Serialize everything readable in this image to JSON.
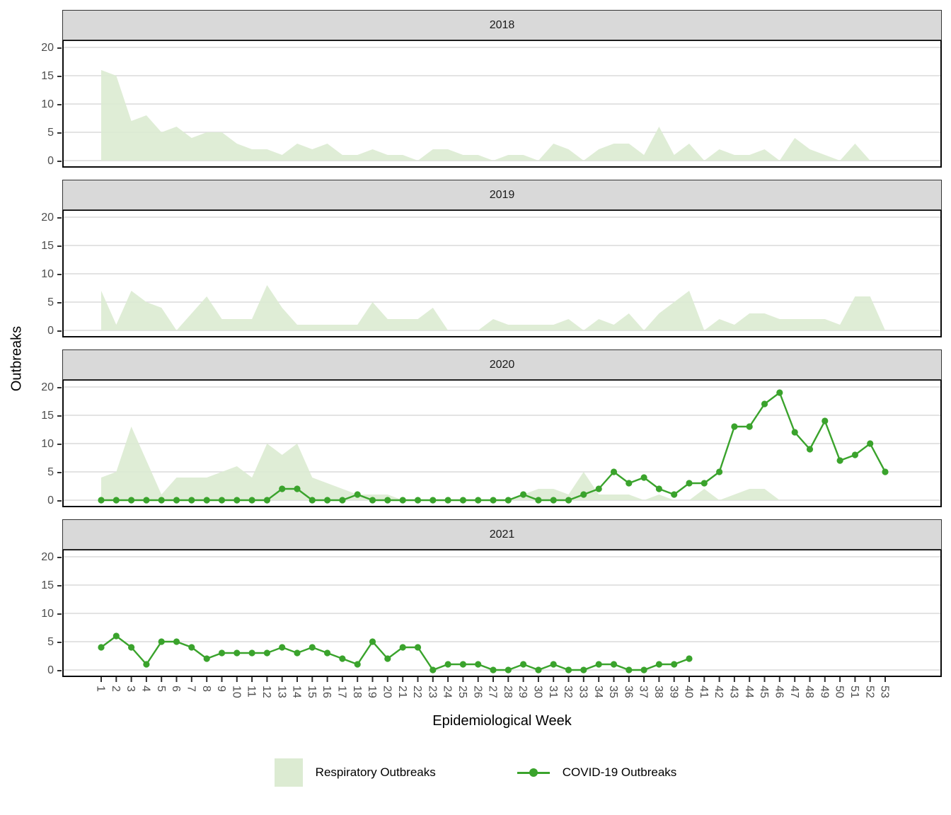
{
  "chart_data": {
    "type": "area+line",
    "faceting": "one row per year, shared x and y scales",
    "title": "",
    "xlabel": "Epidemiological Week",
    "ylabel": "Outbreaks",
    "ylim": [
      0,
      20
    ],
    "yticks": [
      0,
      5,
      10,
      15,
      20
    ],
    "grid": "horizontal major gridlines only, light gray",
    "legend_position": "bottom center",
    "colors": {
      "respiratory_fill": "#dcebd2",
      "covid_line": "#3aa32c",
      "gridline": "#dadada",
      "strip_bg": "#d9d9d9",
      "axis_text": "#4d4d4d",
      "panel_border": "#0a0a0a"
    },
    "weeks": [
      1,
      2,
      3,
      4,
      5,
      6,
      7,
      8,
      9,
      10,
      11,
      12,
      13,
      14,
      15,
      16,
      17,
      18,
      19,
      20,
      21,
      22,
      23,
      24,
      25,
      26,
      27,
      28,
      29,
      30,
      31,
      32,
      33,
      34,
      35,
      36,
      37,
      38,
      39,
      40,
      41,
      42,
      43,
      44,
      45,
      46,
      47,
      48,
      49,
      50,
      51,
      52,
      53
    ],
    "facets": [
      {
        "year": "2018",
        "respiratory": [
          16,
          15,
          7,
          8,
          5,
          6,
          4,
          5,
          5,
          3,
          2,
          2,
          1,
          3,
          2,
          3,
          1,
          1,
          2,
          1,
          1,
          0,
          2,
          2,
          1,
          1,
          0,
          1,
          1,
          0,
          3,
          2,
          0,
          2,
          3,
          3,
          1,
          6,
          1,
          3,
          0,
          2,
          1,
          1,
          2,
          0,
          4,
          2,
          1,
          0,
          3,
          0,
          0
        ],
        "covid": null
      },
      {
        "year": "2019",
        "respiratory": [
          7,
          1,
          7,
          5,
          4,
          0,
          3,
          6,
          2,
          2,
          2,
          8,
          4,
          1,
          1,
          1,
          1,
          1,
          5,
          2,
          2,
          2,
          4,
          0,
          0,
          0,
          2,
          1,
          1,
          1,
          1,
          2,
          0,
          2,
          1,
          3,
          0,
          3,
          5,
          7,
          0,
          2,
          1,
          3,
          3,
          2,
          2,
          2,
          2,
          1,
          6,
          6,
          0
        ],
        "covid": null
      },
      {
        "year": "2020",
        "respiratory": [
          4,
          5,
          13,
          7,
          1,
          4,
          4,
          4,
          5,
          6,
          4,
          10,
          8,
          10,
          4,
          3,
          2,
          1,
          1,
          1,
          0,
          0,
          0,
          0,
          0,
          0,
          0,
          0,
          1,
          2,
          2,
          1,
          5,
          1,
          1,
          1,
          0,
          1,
          0,
          0,
          2,
          0,
          1,
          2,
          2,
          0,
          0,
          0,
          0,
          0,
          0,
          0,
          0
        ],
        "covid": [
          0,
          0,
          0,
          0,
          0,
          0,
          0,
          0,
          0,
          0,
          0,
          0,
          2,
          2,
          0,
          0,
          0,
          1,
          0,
          0,
          0,
          0,
          0,
          0,
          0,
          0,
          0,
          0,
          1,
          0,
          0,
          0,
          1,
          2,
          5,
          3,
          4,
          2,
          1,
          3,
          3,
          5,
          13,
          13,
          17,
          19,
          12,
          9,
          14,
          7,
          8,
          10,
          5
        ]
      },
      {
        "year": "2021",
        "respiratory": null,
        "covid": [
          4,
          6,
          4,
          1,
          5,
          5,
          4,
          2,
          3,
          3,
          3,
          3,
          4,
          3,
          4,
          3,
          2,
          1,
          5,
          2,
          4,
          4,
          0,
          1,
          1,
          1,
          0,
          0,
          1,
          0,
          1,
          0,
          0,
          1,
          1,
          0,
          0,
          1,
          1,
          2
        ]
      }
    ],
    "legend": [
      {
        "label": "Respiratory Outbreaks",
        "swatch": "area",
        "color": "#dcebd2"
      },
      {
        "label": "COVID-19 Outbreaks",
        "swatch": "line-with-point",
        "color": "#3aa32c"
      }
    ]
  }
}
